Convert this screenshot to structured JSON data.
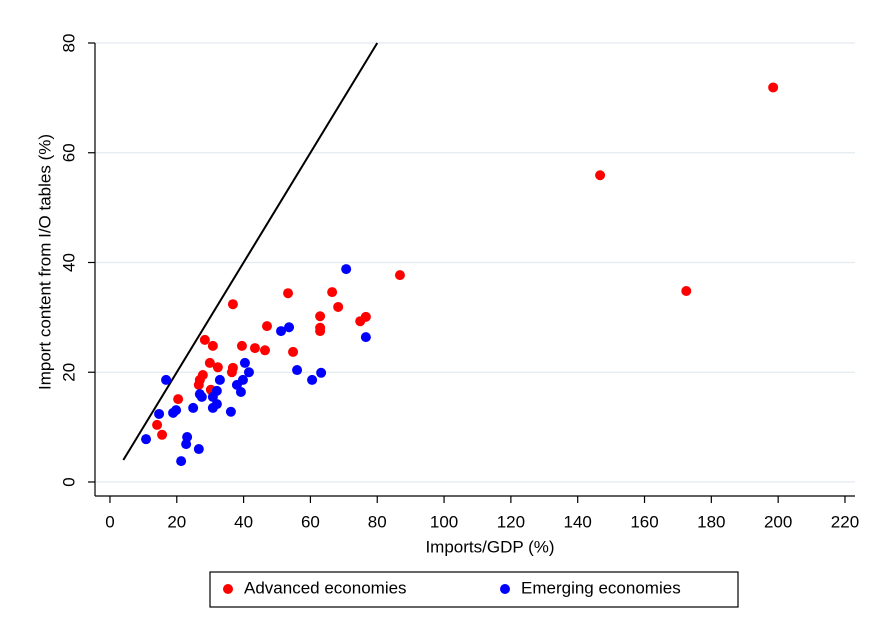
{
  "chart_data": {
    "type": "scatter",
    "xlabel": "Imports/GDP (%)",
    "ylabel": "Import content from I/O tables (%)",
    "xlim": [
      -4,
      223
    ],
    "ylim": [
      -2.5,
      80
    ],
    "xticks": [
      0,
      20,
      40,
      60,
      80,
      100,
      120,
      140,
      160,
      180,
      200,
      220
    ],
    "yticks": [
      0,
      20,
      40,
      60,
      80
    ],
    "grid": true,
    "legend": "bottom",
    "reference_line": {
      "x": [
        4,
        80
      ],
      "y": [
        4,
        80
      ],
      "color": "#000000"
    },
    "series": [
      {
        "name": "Advanced economies",
        "color": "#ff0000",
        "x": [
          198.5,
          146.7,
          172.5,
          86.8,
          36.8,
          53.3,
          66.5,
          68.3,
          76.6,
          74.9,
          62.9,
          62.9,
          62.9,
          54.8,
          47.0,
          43.4,
          46.4,
          39.5,
          28.4,
          30.8,
          29.9,
          32.3,
          36.8,
          36.5,
          27.8,
          26.9,
          26.6,
          30.2,
          20.4,
          14.1,
          15.6
        ],
        "values": [
          71.9,
          55.9,
          34.8,
          37.7,
          32.4,
          34.4,
          34.6,
          31.9,
          30.1,
          29.3,
          30.2,
          28.1,
          27.5,
          23.7,
          28.4,
          24.4,
          24.0,
          24.8,
          25.9,
          24.8,
          21.7,
          20.9,
          20.8,
          20.0,
          19.5,
          18.6,
          17.7,
          16.8,
          15.1,
          10.4,
          8.6
        ]
      },
      {
        "name": "Emerging economies",
        "color": "#0000ff",
        "x": [
          70.7,
          76.6,
          53.6,
          51.2,
          56.0,
          60.5,
          63.2,
          40.4,
          41.6,
          39.8,
          38.0,
          39.2,
          36.2,
          32.9,
          32.0,
          30.8,
          32.0,
          30.8,
          26.9,
          27.5,
          24.9,
          16.8,
          19.8,
          18.9,
          14.7,
          10.8,
          23.1,
          22.8,
          26.6,
          21.3
        ],
        "values": [
          38.8,
          26.4,
          28.2,
          27.5,
          20.4,
          18.6,
          19.9,
          21.7,
          20.0,
          18.6,
          17.7,
          16.4,
          12.8,
          18.6,
          16.6,
          15.5,
          14.2,
          13.5,
          16.0,
          15.5,
          13.5,
          18.6,
          13.1,
          12.6,
          12.4,
          7.8,
          8.2,
          6.9,
          6.0,
          3.8
        ]
      }
    ]
  }
}
